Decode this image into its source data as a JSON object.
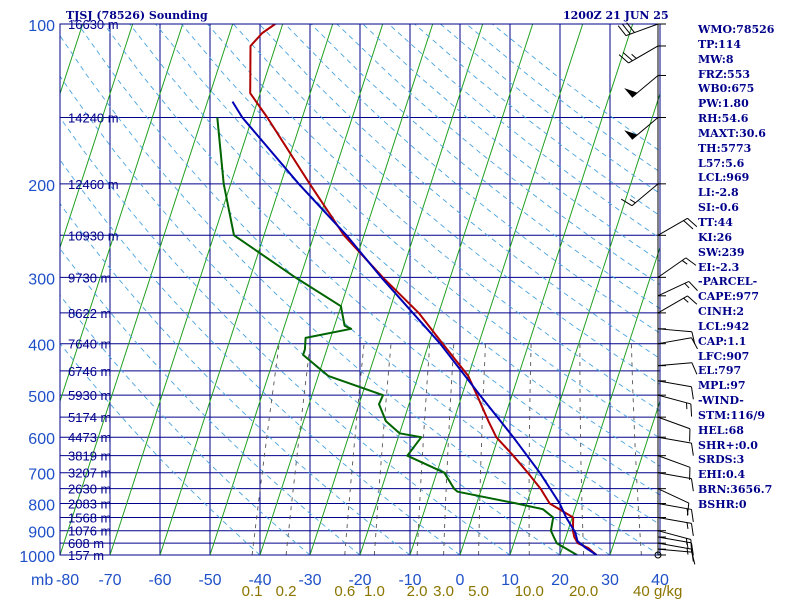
{
  "header": {
    "title": "TJSJ (78526) Sounding",
    "valid_time": "1200Z 21 JUN 25"
  },
  "indices": [
    "WMO:78526",
    "TP:114",
    "MW:8",
    "FRZ:553",
    "WB0:675",
    "PW:1.80",
    "RH:54.6",
    "MAXT:30.6",
    "TH:5773",
    "L57:5.6",
    "LCL:969",
    "LI:-2.8",
    "SI:-0.6",
    "TT:44",
    "KI:26",
    "SW:239",
    "EI:-2.3",
    "-PARCEL-",
    "CAPE:977",
    "CINH:2",
    "LCL:942",
    "CAP:1.1",
    "LFC:907",
    "EL:797",
    "MPL:97",
    "-WIND-",
    "STM:116/9",
    "HEL:68",
    "SHR+:0.0",
    "SRDS:3",
    "EHI:0.4",
    "BRN:3656.7",
    "BSHR:0"
  ],
  "chart_data": {
    "type": "line",
    "title": "TJSJ (78526) Sounding",
    "skew": "skew-T log-P",
    "x_axis_unit_label": "mb",
    "temperature_ticks": [
      -80,
      -70,
      -60,
      -50,
      -40,
      -30,
      -20,
      -10,
      0,
      10,
      20,
      30,
      40
    ],
    "pressure_ticks": [
      100,
      200,
      300,
      400,
      500,
      600,
      700,
      800,
      900,
      1000
    ],
    "ylim": [
      1000,
      100
    ],
    "xlim": [
      -80,
      40
    ],
    "height_labels": [
      {
        "p": 100,
        "text": "16630 m"
      },
      {
        "p": 150,
        "text": "14240 m"
      },
      {
        "p": 200,
        "text": "12460 m"
      },
      {
        "p": 250,
        "text": "10930 m"
      },
      {
        "p": 300,
        "text": "9730 m"
      },
      {
        "p": 350,
        "text": "8622 m"
      },
      {
        "p": 400,
        "text": "7640 m"
      },
      {
        "p": 450,
        "text": "6746 m"
      },
      {
        "p": 500,
        "text": "5930 m"
      },
      {
        "p": 550,
        "text": "5174 m"
      },
      {
        "p": 600,
        "text": "4473 m"
      },
      {
        "p": 650,
        "text": "3819 m"
      },
      {
        "p": 700,
        "text": "3207 m"
      },
      {
        "p": 750,
        "text": "2630 m"
      },
      {
        "p": 800,
        "text": "2083 m"
      },
      {
        "p": 850,
        "text": "1568 m"
      },
      {
        "p": 900,
        "text": "1076 m"
      },
      {
        "p": 950,
        "text": "608 m"
      },
      {
        "p": 1000,
        "text": "157 m"
      }
    ],
    "mixing_ratio_labels": [
      {
        "w": 0.1,
        "text": "0.1"
      },
      {
        "w": 0.2,
        "text": "0.2"
      },
      {
        "w": 0.6,
        "text": "0.6"
      },
      {
        "w": 1.0,
        "text": "1.0"
      },
      {
        "w": 2.0,
        "text": "2.0"
      },
      {
        "w": 3.0,
        "text": "3.0"
      },
      {
        "w": 5.0,
        "text": "5.0"
      },
      {
        "w": 10.0,
        "text": "10.0"
      },
      {
        "w": 20.0,
        "text": "20.0"
      },
      {
        "w": 40.0,
        "text": "40"
      }
    ],
    "mixing_ratio_unit": "g/kg",
    "series": [
      {
        "color": "#b00000",
        "points": [
          [
            1000,
            27.3
          ],
          [
            970,
            25.2
          ],
          [
            950,
            22.8
          ],
          [
            925,
            21.7
          ],
          [
            900,
            21.0
          ],
          [
            850,
            20.2
          ],
          [
            800,
            14.6
          ],
          [
            750,
            11.8
          ],
          [
            700,
            8.2
          ],
          [
            650,
            4.2
          ],
          [
            600,
            -0.4
          ],
          [
            560,
            -3.0
          ],
          [
            500,
            -7.0
          ],
          [
            460,
            -10.0
          ],
          [
            400,
            -17.2
          ],
          [
            350,
            -24.0
          ],
          [
            300,
            -33.5
          ],
          [
            250,
            -44.0
          ],
          [
            200,
            -54.2
          ],
          [
            150,
            -67.0
          ],
          [
            135,
            -72.0
          ],
          [
            110,
            -75.0
          ],
          [
            104,
            -73.5
          ],
          [
            100,
            -71.5
          ]
        ]
      },
      {
        "color": "#006400",
        "points": [
          [
            1000,
            23.4
          ],
          [
            950,
            18.6
          ],
          [
            925,
            17.6
          ],
          [
            900,
            16.6
          ],
          [
            850,
            16.2
          ],
          [
            820,
            13.6
          ],
          [
            800,
            8.0
          ],
          [
            760,
            -4.6
          ],
          [
            750,
            -5.5
          ],
          [
            700,
            -8.5
          ],
          [
            650,
            -17.0
          ],
          [
            600,
            -15.4
          ],
          [
            590,
            -20.0
          ],
          [
            560,
            -23.5
          ],
          [
            520,
            -26.0
          ],
          [
            500,
            -25.8
          ],
          [
            460,
            -38.0
          ],
          [
            420,
            -44.4
          ],
          [
            410,
            -44.4
          ],
          [
            390,
            -45.0
          ],
          [
            375,
            -36.5
          ],
          [
            370,
            -38.0
          ],
          [
            340,
            -40.0
          ],
          [
            300,
            -51.0
          ],
          [
            250,
            -66.0
          ],
          [
            200,
            -71.4
          ],
          [
            150,
            -77.0
          ]
        ]
      },
      {
        "color": "#0000b4",
        "points": [
          [
            1000,
            27.3
          ],
          [
            969,
            24.6
          ],
          [
            942,
            22.6
          ],
          [
            907,
            21.6
          ],
          [
            850,
            18.8
          ],
          [
            800,
            16.6
          ],
          [
            700,
            10.6
          ],
          [
            600,
            3.0
          ],
          [
            500,
            -6.4
          ],
          [
            400,
            -17.7
          ],
          [
            300,
            -33.8
          ],
          [
            250,
            -43.5
          ],
          [
            200,
            -56.4
          ],
          [
            150,
            -72.0
          ],
          [
            140,
            -75.0
          ]
        ]
      }
    ],
    "wind_barbs": [
      {
        "p": 1000,
        "dir": 0,
        "speed": 0
      },
      {
        "p": 975,
        "dir": 95,
        "speed": 10
      },
      {
        "p": 950,
        "dir": 100,
        "speed": 15
      },
      {
        "p": 925,
        "dir": 100,
        "speed": 15
      },
      {
        "p": 900,
        "dir": 105,
        "speed": 15
      },
      {
        "p": 850,
        "dir": 100,
        "speed": 15
      },
      {
        "p": 800,
        "dir": 100,
        "speed": 15
      },
      {
        "p": 750,
        "dir": 115,
        "speed": 10
      },
      {
        "p": 700,
        "dir": 100,
        "speed": 10
      },
      {
        "p": 650,
        "dir": 110,
        "speed": 10
      },
      {
        "p": 600,
        "dir": 100,
        "speed": 10
      },
      {
        "p": 550,
        "dir": 110,
        "speed": 10
      },
      {
        "p": 500,
        "dir": 105,
        "speed": 15
      },
      {
        "p": 470,
        "dir": 100,
        "speed": 10
      },
      {
        "p": 440,
        "dir": 85,
        "speed": 10
      },
      {
        "p": 400,
        "dir": 80,
        "speed": 10
      },
      {
        "p": 375,
        "dir": 95,
        "speed": 10
      },
      {
        "p": 350,
        "dir": 60,
        "speed": 15
      },
      {
        "p": 325,
        "dir": 65,
        "speed": 15
      },
      {
        "p": 300,
        "dir": 55,
        "speed": 15
      },
      {
        "p": 250,
        "dir": 60,
        "speed": 20
      },
      {
        "p": 200,
        "dir": 230,
        "speed": 15
      },
      {
        "p": 150,
        "dir": 230,
        "speed": 50
      },
      {
        "p": 125,
        "dir": 230,
        "speed": 50
      },
      {
        "p": 110,
        "dir": 240,
        "speed": 25
      },
      {
        "p": 100,
        "dir": 250,
        "speed": 30
      }
    ]
  }
}
